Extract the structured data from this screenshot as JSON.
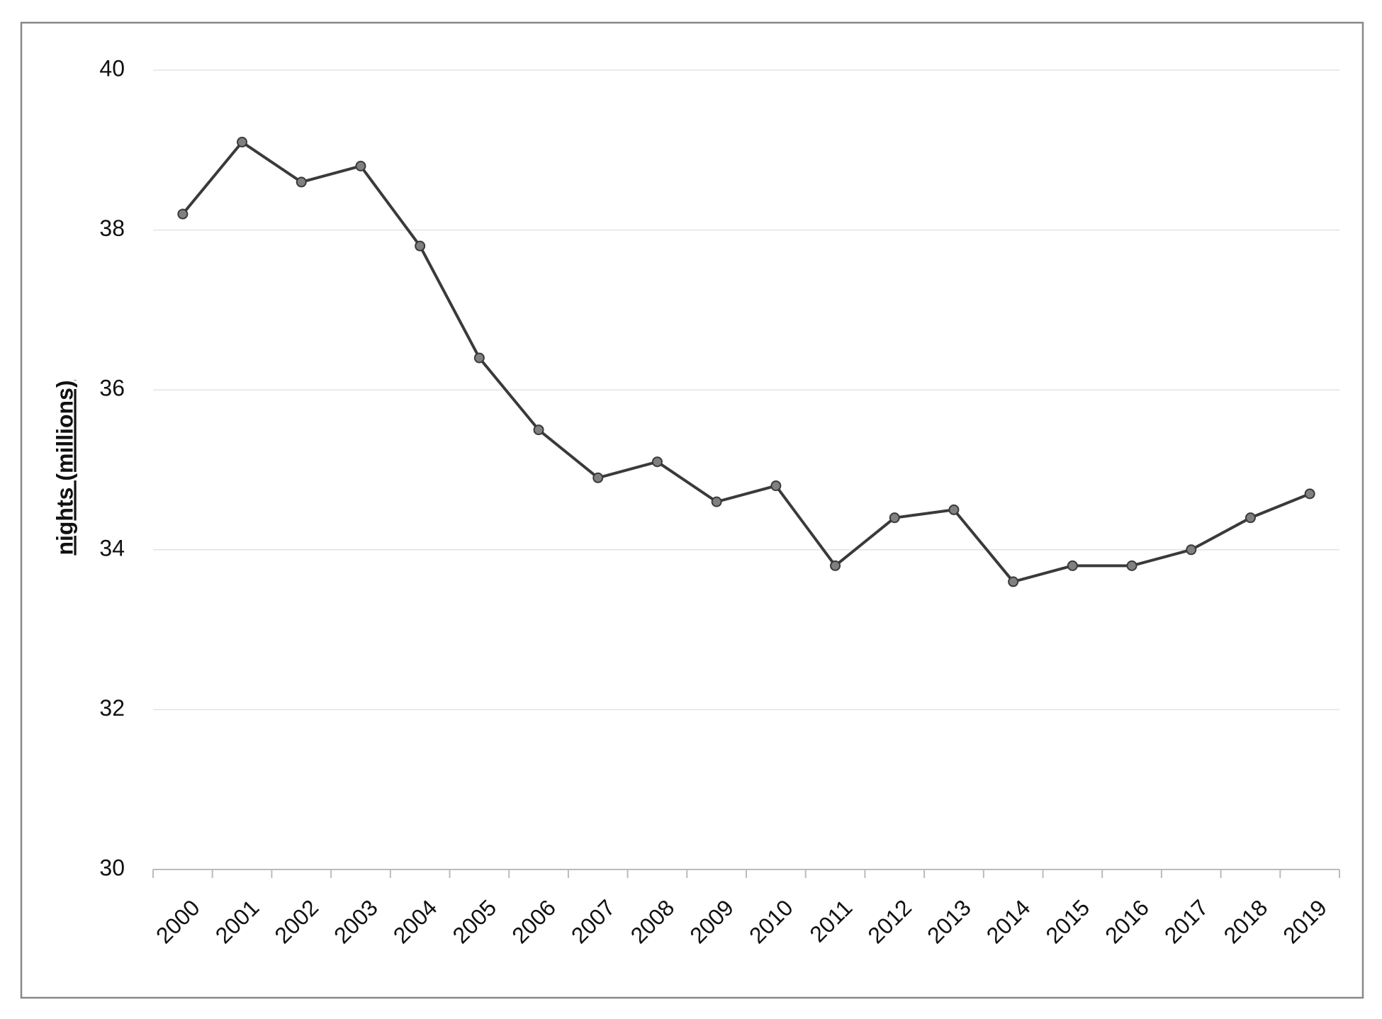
{
  "chart_data": {
    "type": "line",
    "y_label": "nights (millions)",
    "categories": [
      "2000",
      "2001",
      "2002",
      "2003",
      "2004",
      "2005",
      "2006",
      "2007",
      "2008",
      "2009",
      "2010",
      "2011",
      "2012",
      "2013",
      "2014",
      "2015",
      "2016",
      "2017",
      "2018",
      "2019"
    ],
    "values": [
      38.2,
      39.1,
      38.6,
      38.8,
      37.8,
      36.4,
      35.5,
      34.9,
      35.1,
      34.6,
      34.8,
      33.8,
      34.4,
      34.5,
      33.6,
      33.8,
      33.8,
      34.0,
      34.4,
      34.7
    ],
    "color": "#3a3a3a",
    "marker_color": "#808080",
    "ylim": [
      30,
      40
    ],
    "yticks": [
      30,
      32,
      34,
      36,
      38,
      40
    ],
    "grid": true
  }
}
